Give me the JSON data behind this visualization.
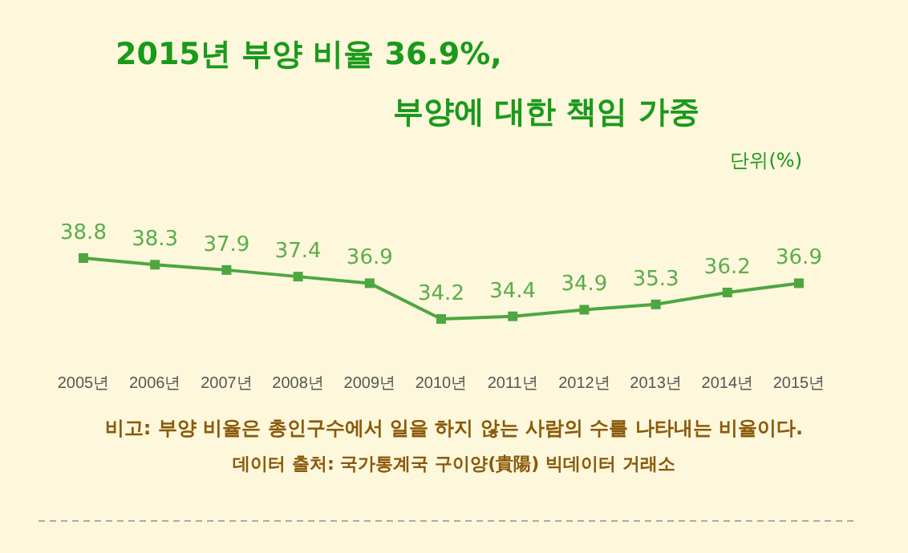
{
  "chart_data": {
    "type": "line",
    "title": "2015년 부양 비율 36.9%,",
    "subtitle": "부양에 대한 책임 가중",
    "ylabel": "단위(%)",
    "categories": [
      "2005년",
      "2006년",
      "2007년",
      "2008년",
      "2009년",
      "2010년",
      "2011년",
      "2012년",
      "2013년",
      "2014년",
      "2015년"
    ],
    "series": [
      {
        "color": "#4ea641",
        "values": [
          38.8,
          38.3,
          37.9,
          37.4,
          36.9,
          34.2,
          34.4,
          34.9,
          35.3,
          36.2,
          36.9
        ]
      }
    ],
    "data_labels": true,
    "marker": "square",
    "line_style": "solid",
    "grid": false,
    "annotations": [
      "비고: 부양 비율은 총인구수에서 일을 하지 않는 사람의 수를 나타내는 비율이다.",
      "데이터 출처: 국가통계국  구이양(貴陽) 빅데이터 거래소"
    ]
  }
}
